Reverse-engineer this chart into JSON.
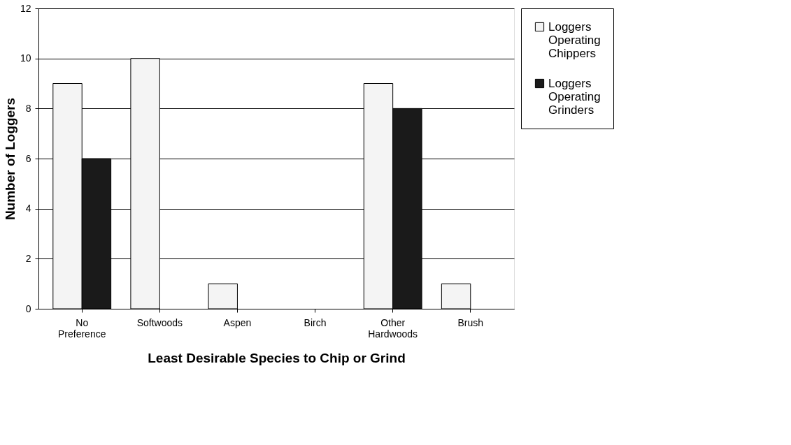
{
  "chart_data": {
    "type": "bar",
    "xlabel": "Least Desirable Species to Chip or Grind",
    "ylabel": "Number of Loggers",
    "categories": [
      "No Preference",
      "Softwoods",
      "Aspen",
      "Birch",
      "Other Hardwoods",
      "Brush"
    ],
    "series": [
      {
        "name": "Loggers Operating Chippers",
        "color": "#f4f4f4",
        "values": [
          9,
          10,
          1,
          0,
          9,
          1
        ]
      },
      {
        "name": "Loggers Operating Grinders",
        "color": "#1a1a1a",
        "values": [
          6,
          0,
          0,
          0,
          8,
          0
        ]
      }
    ],
    "ylim": [
      0,
      12
    ],
    "yticks": [
      0,
      2,
      4,
      6,
      8,
      10,
      12
    ],
    "grid": "y",
    "legend": "right"
  }
}
